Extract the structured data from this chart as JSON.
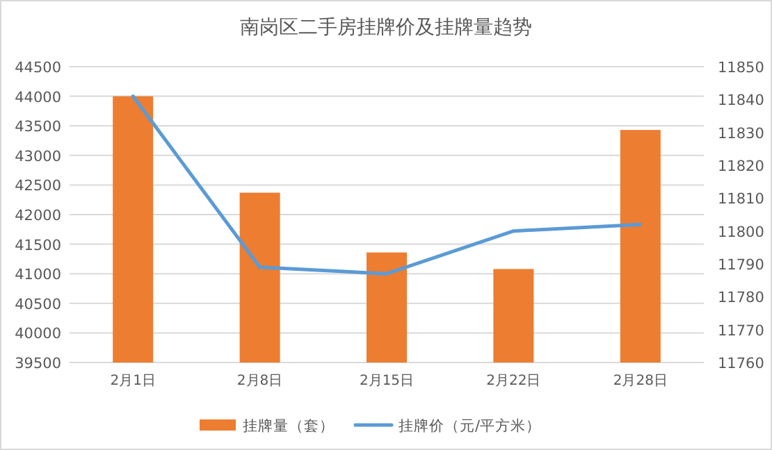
{
  "chart_data": {
    "type": "bar",
    "title": "南岗区二手房挂牌价及挂牌量趋势",
    "categories": [
      "2月1日",
      "2月8日",
      "2月15日",
      "2月22日",
      "2月28日"
    ],
    "series": [
      {
        "name": "挂牌量（套）",
        "color": "#ed7d31",
        "values": [
          44000,
          42370,
          41360,
          41080,
          43430
        ]
      },
      {
        "name": "挂牌价（元/平方米）",
        "type": "line",
        "axis": "y2",
        "color": "#5b9bd5",
        "values": [
          11841,
          11789,
          11787,
          11800,
          11802
        ]
      }
    ],
    "ylim": [
      39500,
      44500
    ],
    "yticks": [
      39500,
      40000,
      40500,
      41000,
      41500,
      42000,
      42500,
      43000,
      43500,
      44000,
      44500
    ],
    "y2lim": [
      11760,
      11850
    ],
    "y2ticks": [
      11760,
      11770,
      11780,
      11790,
      11800,
      11810,
      11820,
      11830,
      11840,
      11850
    ],
    "grid": "y",
    "legend": "bottom"
  }
}
